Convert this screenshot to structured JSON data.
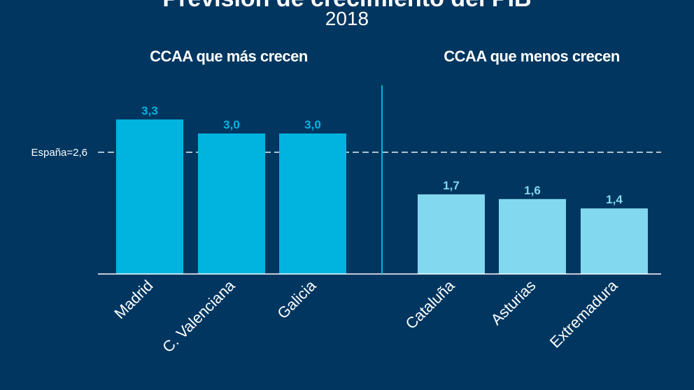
{
  "header": {
    "title": "Previsión de crecimiento del PIB",
    "subtitle": "2018"
  },
  "colors": {
    "background": "#003660",
    "top_bars": "#00b4e0",
    "bottom_bars": "#82d9ef",
    "divider": "#00b4e0",
    "reference_line": "#ffffff"
  },
  "chart_data": {
    "type": "bar",
    "title": "Previsión de crecimiento del PIB",
    "subtitle": "2018",
    "ylim": [
      0,
      3.6
    ],
    "grid": false,
    "reference_line": {
      "label": "España=2,6",
      "value": 2.6
    },
    "groups": [
      {
        "title": "CCAA que más crecen",
        "categories": [
          "Madrid",
          "C. Valenciana",
          "Galicia"
        ],
        "values": [
          3.3,
          3.0,
          3.0
        ],
        "value_labels": [
          "3,3",
          "3,0",
          "3,0"
        ]
      },
      {
        "title": "CCAA que menos crecen",
        "categories": [
          "Cataluña",
          "Asturias",
          "Extremadura"
        ],
        "values": [
          1.7,
          1.6,
          1.4
        ],
        "value_labels": [
          "1,7",
          "1,6",
          "1,4"
        ]
      }
    ]
  }
}
